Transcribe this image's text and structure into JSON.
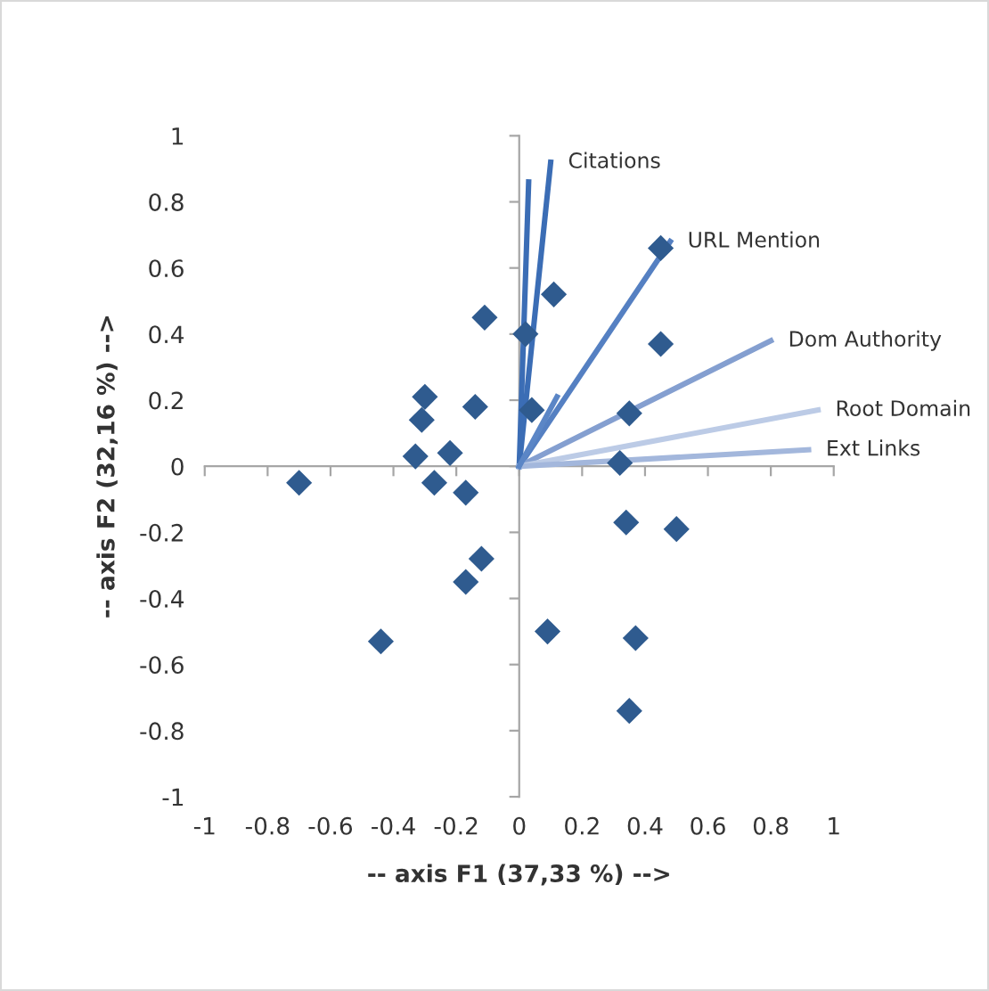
{
  "chart_data": {
    "type": "scatter",
    "xlabel": "-- axis F1 (37,33 %) -->",
    "ylabel": "-- axis F2 (32,16 %) -->",
    "xlim": [
      -1,
      1
    ],
    "ylim": [
      -1,
      1
    ],
    "xticks": [
      -1,
      -0.8,
      -0.6,
      -0.4,
      -0.2,
      0,
      0.2,
      0.4,
      0.6,
      0.8,
      1
    ],
    "yticks": [
      -1,
      -0.8,
      -0.6,
      -0.4,
      -0.2,
      0,
      0.2,
      0.4,
      0.6,
      0.8,
      1
    ],
    "legend": false,
    "series": [
      {
        "marker": "diamond",
        "color": "#2f5b8f",
        "x": [
          0.32,
          0.34,
          0.5,
          0.09,
          0.37,
          0.35,
          -0.7,
          -0.33,
          -0.22,
          -0.27,
          -0.17,
          -0.12,
          -0.17,
          -0.44,
          -0.11,
          0.02,
          -0.3,
          -0.31,
          -0.14,
          0.04,
          0.11,
          0.45,
          0.45,
          0.35
        ],
        "values": [
          0.01,
          -0.17,
          -0.19,
          -0.5,
          -0.52,
          -0.74,
          -0.05,
          0.03,
          0.04,
          -0.05,
          -0.08,
          -0.28,
          -0.35,
          -0.53,
          0.45,
          0.4,
          0.21,
          0.14,
          0.18,
          0.17,
          0.52,
          0.66,
          0.37,
          0.16
        ]
      },
      {
        "type": "line",
        "marker": "none",
        "color": "#3b6db5",
        "x": [
          0,
          0.03
        ],
        "values": [
          0,
          0.86
        ]
      },
      {
        "type": "line",
        "marker": "none",
        "name": "Citations",
        "color": "#3b6db5",
        "x": [
          0,
          0.1
        ],
        "values": [
          0,
          0.92
        ]
      },
      {
        "type": "line",
        "marker": "none",
        "name": "URL Mention",
        "color": "#5580c2",
        "x": [
          0,
          0.48
        ],
        "values": [
          0,
          0.68
        ]
      },
      {
        "type": "line",
        "marker": "none",
        "name": "Dom Authority",
        "color": "#849fd0",
        "x": [
          0,
          0.8
        ],
        "values": [
          0,
          0.38
        ]
      },
      {
        "type": "line",
        "marker": "none",
        "name": "Root Domain",
        "color": "#bccbe6",
        "x": [
          0,
          0.95
        ],
        "values": [
          0,
          0.17
        ]
      },
      {
        "type": "line",
        "marker": "none",
        "name": "Ext Links",
        "color": "#a3b7dc",
        "x": [
          0,
          0.92
        ],
        "values": [
          0,
          0.05
        ]
      },
      {
        "type": "line",
        "marker": "none",
        "color": "#5b86c6",
        "x": [
          0,
          0.12
        ],
        "values": [
          0,
          0.21
        ]
      }
    ]
  }
}
